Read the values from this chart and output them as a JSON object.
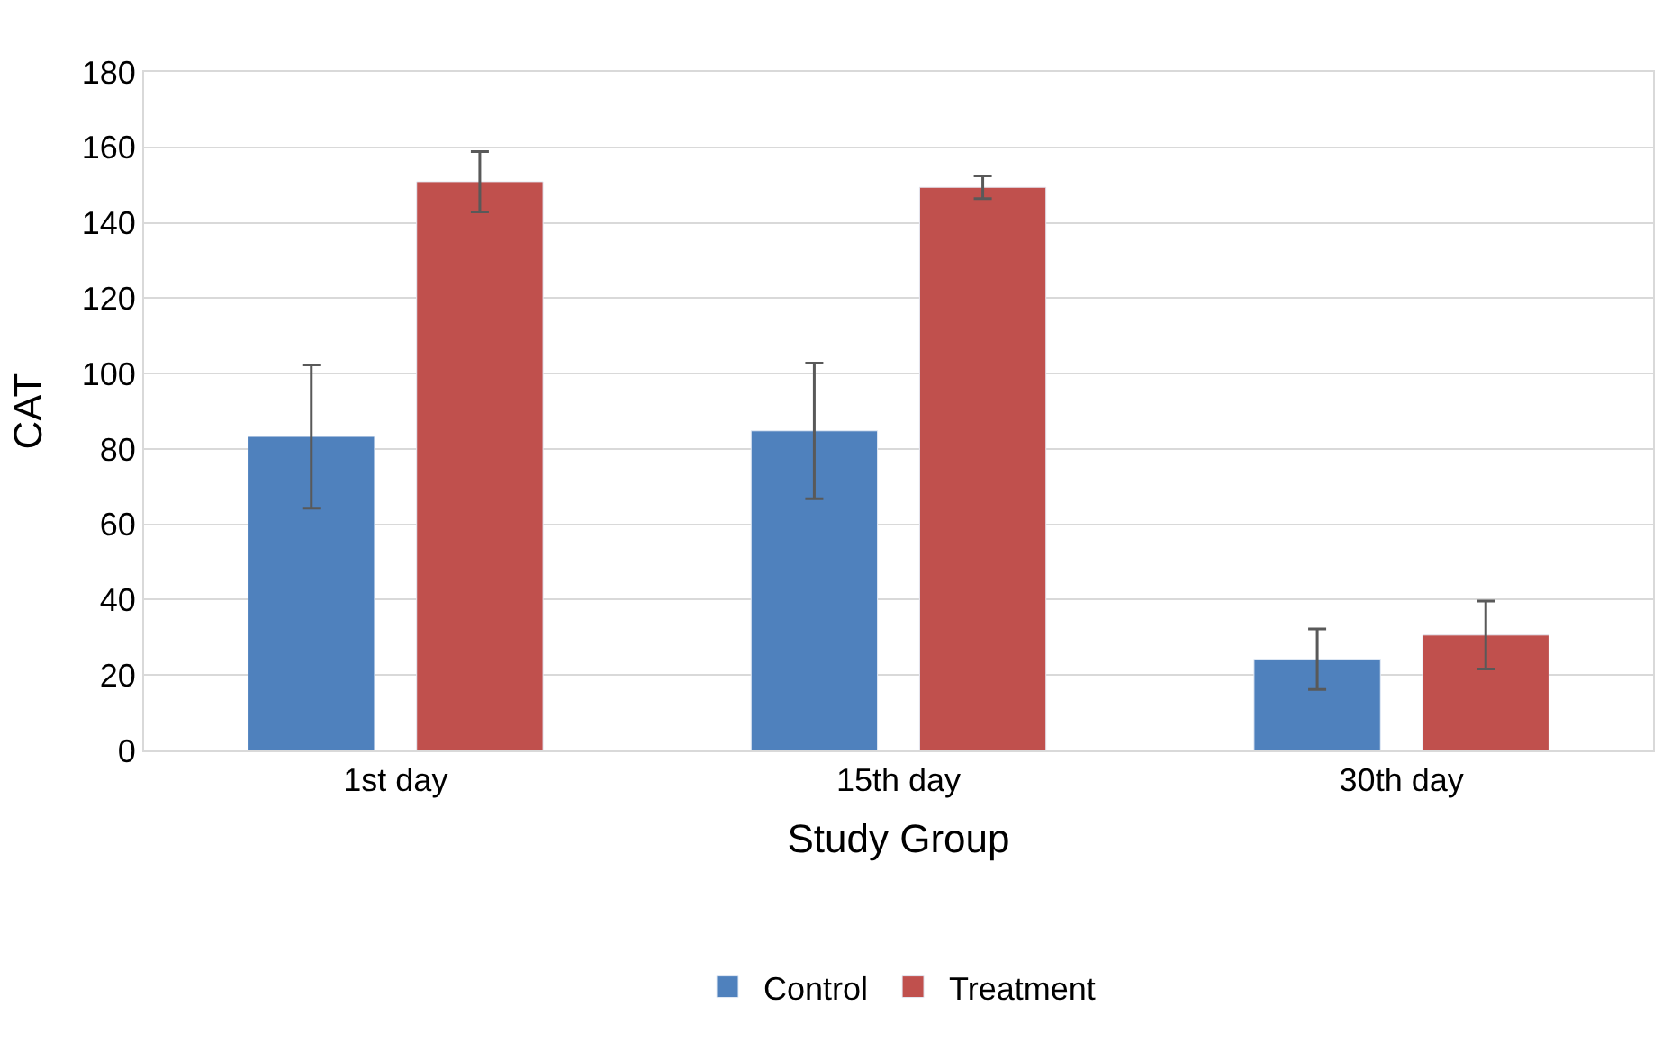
{
  "chart_data": {
    "type": "bar",
    "xlabel": "Study Group",
    "ylabel": "CAT",
    "categories": [
      "1st day",
      "15th day",
      "30th day"
    ],
    "series": [
      {
        "name": "Control",
        "color": "#4f81bd",
        "values": [
          83.3,
          84.8,
          24.2
        ],
        "errors": [
          19,
          18,
          8
        ]
      },
      {
        "name": "Treatment",
        "color": "#c0504d",
        "values": [
          150.9,
          149.4,
          30.6
        ],
        "errors": [
          8,
          3,
          9
        ]
      }
    ],
    "ylim": [
      0,
      180
    ],
    "yticks": [
      0,
      20,
      40,
      60,
      80,
      100,
      120,
      140,
      160,
      180
    ],
    "grid": "y",
    "legend": "bottom"
  }
}
